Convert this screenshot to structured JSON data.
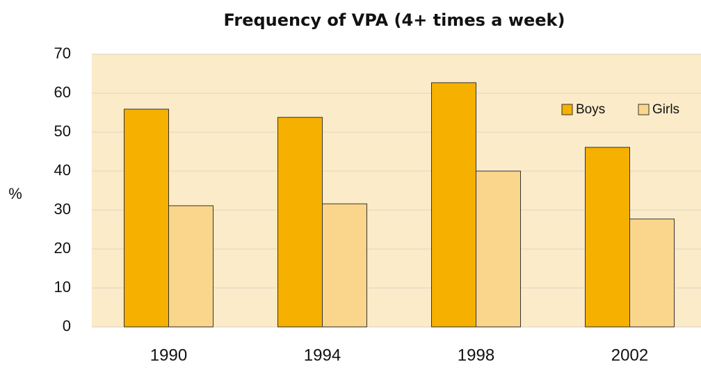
{
  "chart_data": {
    "type": "bar",
    "title": "Frequency of VPA (4+ times a week)",
    "y_label": "%",
    "categories": [
      "1990",
      "1994",
      "1998",
      "2002"
    ],
    "series": [
      {
        "name": "Boys",
        "color": "#f5b000",
        "values": [
          55.9,
          53.8,
          62.7,
          46.1
        ]
      },
      {
        "name": "Girls",
        "color": "#fad68c",
        "values": [
          31.1,
          31.6,
          40,
          27.7
        ]
      }
    ],
    "ylim": [
      0,
      70
    ],
    "yticks": [
      0,
      10,
      20,
      30,
      40,
      50,
      60,
      70
    ],
    "grid": true,
    "legend": "upper right"
  }
}
